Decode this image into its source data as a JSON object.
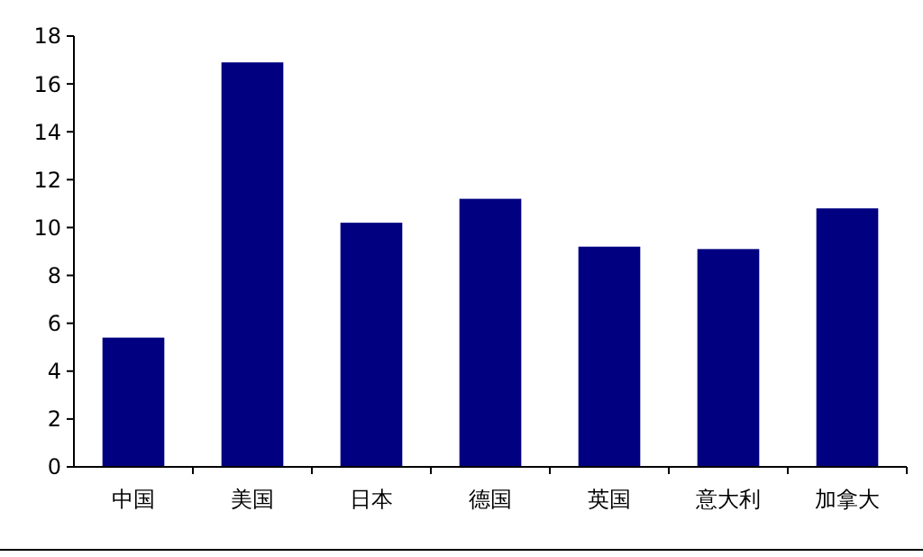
{
  "chart_data": {
    "type": "bar",
    "categories": [
      "中国",
      "美国",
      "日本",
      "德国",
      "英国",
      "意大利",
      "加拿大"
    ],
    "values": [
      5.4,
      16.9,
      10.2,
      11.2,
      9.2,
      9.1,
      10.8
    ],
    "color": "#000080",
    "ylim": [
      0,
      18
    ],
    "yticks": [
      0,
      2,
      4,
      6,
      8,
      10,
      12,
      14,
      16,
      18
    ],
    "grid": false
  }
}
